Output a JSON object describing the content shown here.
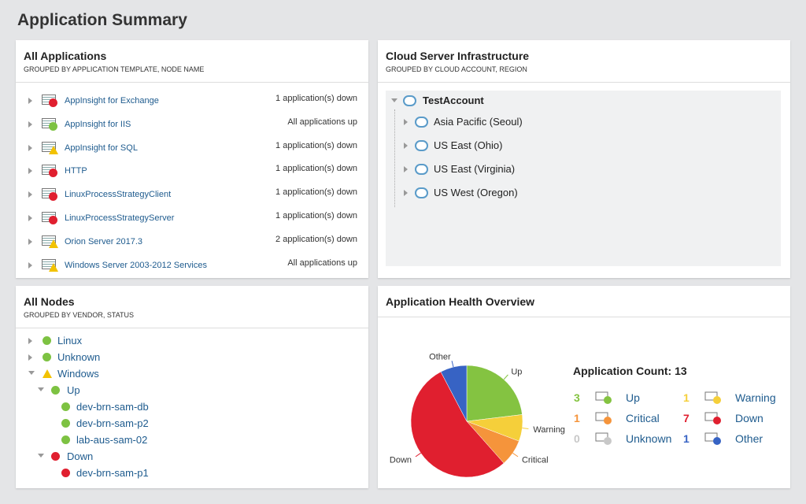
{
  "header": {
    "title": "Application Summary"
  },
  "all_applications": {
    "title": "All Applications",
    "subtitle": "GROUPED BY APPLICATION TEMPLATE, NODE NAME",
    "rows": [
      {
        "name": "AppInsight for Exchange",
        "status_text": "1 application(s) down",
        "status": "down"
      },
      {
        "name": "AppInsight for IIS",
        "status_text": "All applications up",
        "status": "up"
      },
      {
        "name": "AppInsight for SQL",
        "status_text": "1 application(s) down",
        "status": "warning"
      },
      {
        "name": "HTTP",
        "status_text": "1 application(s) down",
        "status": "down"
      },
      {
        "name": "LinuxProcessStrategyClient",
        "status_text": "1 application(s) down",
        "status": "down"
      },
      {
        "name": "LinuxProcessStrategyServer",
        "status_text": "1 application(s) down",
        "status": "down"
      },
      {
        "name": "Orion Server 2017.3",
        "status_text": "2 application(s) down",
        "status": "warning"
      },
      {
        "name": "Windows Server 2003-2012 Services",
        "status_text": "All applications up",
        "status": "warning"
      }
    ]
  },
  "cloud": {
    "title": "Cloud Server Infrastructure",
    "subtitle": "GROUPED BY CLOUD ACCOUNT, REGION",
    "account": "TestAccount",
    "regions": [
      "Asia Pacific (Seoul)",
      "US East (Ohio)",
      "US East (Virginia)",
      "US West (Oregon)"
    ]
  },
  "all_nodes": {
    "title": "All Nodes",
    "subtitle": "GROUPED BY VENDOR, STATUS",
    "items": [
      {
        "label": "Linux",
        "level": 0,
        "status": "up",
        "expanded": false
      },
      {
        "label": "Unknown",
        "level": 0,
        "status": "up",
        "expanded": false
      },
      {
        "label": "Windows",
        "level": 0,
        "status": "warning",
        "expanded": true
      },
      {
        "label": "Up",
        "level": 1,
        "status": "up",
        "expanded": true
      },
      {
        "label": "dev-brn-sam-db",
        "level": 2,
        "status": "up"
      },
      {
        "label": "dev-brn-sam-p2",
        "level": 2,
        "status": "up"
      },
      {
        "label": "lab-aus-sam-02",
        "level": 2,
        "status": "up"
      },
      {
        "label": "Down",
        "level": 1,
        "status": "down",
        "expanded": true
      },
      {
        "label": "dev-brn-sam-p1",
        "level": 2,
        "status": "down"
      }
    ]
  },
  "health": {
    "title": "Application Health Overview",
    "count_label": "Application Count:",
    "count": 13,
    "chart": {
      "type": "pie",
      "categories": [
        "Up",
        "Warning",
        "Critical",
        "Down",
        "Unknown",
        "Other"
      ],
      "values": [
        3,
        1,
        1,
        7,
        0,
        1
      ],
      "colors": [
        "#84c341",
        "#f5cf3a",
        "#f5943b",
        "#e01f2f",
        "#c8c8c8",
        "#3763c4"
      ]
    }
  }
}
